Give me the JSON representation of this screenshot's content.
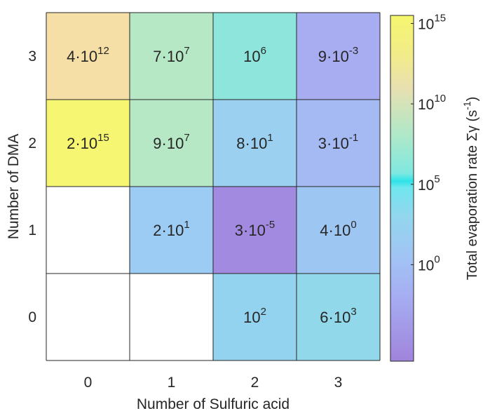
{
  "chart_data": {
    "type": "heatmap",
    "title": "",
    "xlabel": "Number of Sulfuric acid",
    "ylabel": "Number of DMA",
    "x_categories": [
      "0",
      "1",
      "2",
      "3"
    ],
    "y_categories": [
      "0",
      "1",
      "2",
      "3"
    ],
    "cells": [
      {
        "x": 0,
        "y": 3,
        "value": 4000000000000.0,
        "mantissa": "4",
        "exponent": "12",
        "color": "#f6dfa6"
      },
      {
        "x": 1,
        "y": 3,
        "value": 70000000.0,
        "mantissa": "7",
        "exponent": "7",
        "color": "#b6e8c5"
      },
      {
        "x": 2,
        "y": 3,
        "value": 1000000.0,
        "mantissa": "",
        "exponent": "6",
        "color": "#8ee5dc"
      },
      {
        "x": 3,
        "y": 3,
        "value": 0.009,
        "mantissa": "9",
        "exponent": "-3",
        "color": "#a8acf1"
      },
      {
        "x": 0,
        "y": 2,
        "value": 2000000000000000.0,
        "mantissa": "2",
        "exponent": "15",
        "color": "#f6f673"
      },
      {
        "x": 1,
        "y": 2,
        "value": 90000000.0,
        "mantissa": "9",
        "exponent": "7",
        "color": "#b6e8c5"
      },
      {
        "x": 2,
        "y": 2,
        "value": 80.0,
        "mantissa": "8",
        "exponent": "1",
        "color": "#9bd0f1"
      },
      {
        "x": 3,
        "y": 2,
        "value": 0.3,
        "mantissa": "3",
        "exponent": "-1",
        "color": "#a5baf3"
      },
      {
        "x": 1,
        "y": 1,
        "value": 20.0,
        "mantissa": "2",
        "exponent": "1",
        "color": "#9ccbf3"
      },
      {
        "x": 2,
        "y": 1,
        "value": 3e-05,
        "mantissa": "3",
        "exponent": "-5",
        "color": "#a28ae0"
      },
      {
        "x": 3,
        "y": 1,
        "value": 4.0,
        "mantissa": "4",
        "exponent": "0",
        "color": "#9ec6f3"
      },
      {
        "x": 2,
        "y": 0,
        "value": 100.0,
        "mantissa": "",
        "exponent": "2",
        "color": "#94d3ef"
      },
      {
        "x": 3,
        "y": 0,
        "value": 6000.0,
        "mantissa": "6",
        "exponent": "3",
        "color": "#91d8eb"
      }
    ],
    "empty_cells": [
      {
        "x": 0,
        "y": 1
      },
      {
        "x": 0,
        "y": 0
      },
      {
        "x": 1,
        "y": 0
      }
    ],
    "colorbar": {
      "label": "Total evaporation rate Σγ (s⁻¹)",
      "scale": "log",
      "range": [
        -6,
        15.5
      ],
      "ticks": [
        {
          "exponent": "15",
          "value": 15
        },
        {
          "exponent": "10",
          "value": 10
        },
        {
          "exponent": "5",
          "value": 5
        },
        {
          "exponent": "0",
          "value": 0
        }
      ],
      "colormap": [
        {
          "value": -6,
          "color": "#a084dc"
        },
        {
          "value": -2,
          "color": "#a6adf2"
        },
        {
          "value": 0.5,
          "color": "#a1c4f4"
        },
        {
          "value": 3,
          "color": "#93d6ee"
        },
        {
          "value": 4.8,
          "color": "#6fe6ee"
        },
        {
          "value": 5.2,
          "color": "#2ee3e8"
        },
        {
          "value": 5.7,
          "color": "#80e8e0"
        },
        {
          "value": 8,
          "color": "#aee8c9"
        },
        {
          "value": 11,
          "color": "#e8e0b0"
        },
        {
          "value": 13,
          "color": "#f2eb8a"
        },
        {
          "value": 15.5,
          "color": "#f6f66e"
        }
      ]
    }
  }
}
